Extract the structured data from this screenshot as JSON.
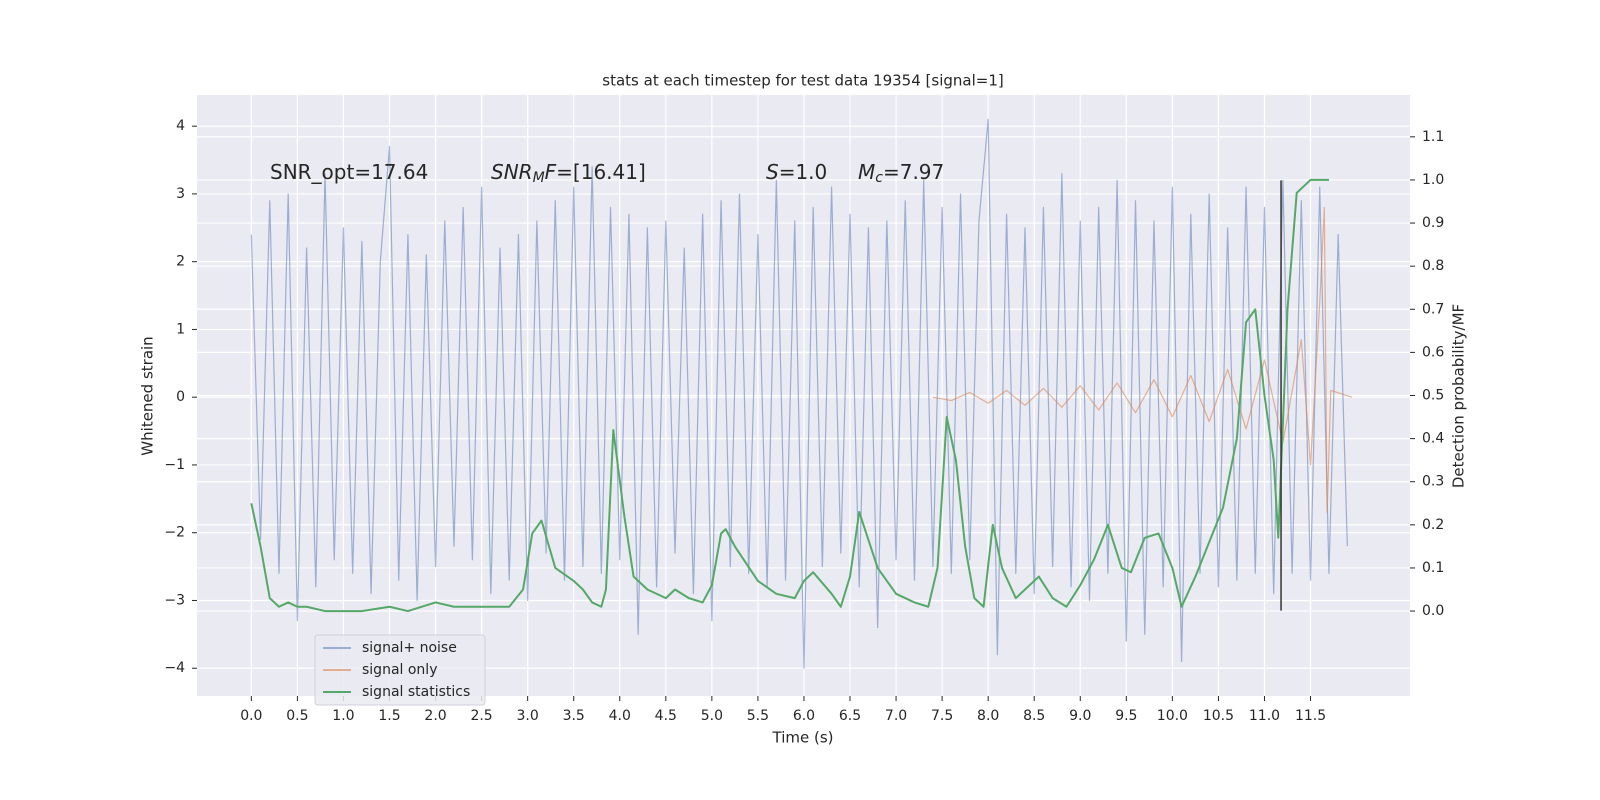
{
  "chart_data": {
    "type": "line",
    "title": "stats at each timestep for test data 19354 [signal=1]",
    "xlabel": "Time (s)",
    "ylabel": "Whitened strain",
    "y2label": "Detection probability/MF",
    "xlim": [
      -0.59,
      12.58
    ],
    "ylim": [
      -4.41,
      4.46
    ],
    "y2lim": [
      -0.197,
      1.197
    ],
    "xticks": [
      {
        "value": 0,
        "label": "0.0"
      },
      0.5,
      {
        "value": 1,
        "label": "1.0"
      },
      1.5,
      {
        "value": 2,
        "label": "2.0"
      },
      2.5,
      {
        "value": 3,
        "label": "3.0"
      },
      3.5,
      {
        "value": 4,
        "label": "4.0"
      },
      4.5,
      {
        "value": 5,
        "label": "5.0"
      },
      5.5,
      {
        "value": 6,
        "label": "6.0"
      },
      6.5,
      {
        "value": 7,
        "label": "7.0"
      },
      7.5,
      {
        "value": 8,
        "label": "8.0"
      },
      8.5,
      {
        "value": 9,
        "label": "9.0"
      },
      9.5,
      {
        "value": 10,
        "label": "10.0"
      },
      10.5,
      {
        "value": 11,
        "label": "11.0"
      },
      11.5
    ],
    "yticks": [
      {
        "value": -4,
        "label": "−4"
      },
      {
        "value": -3,
        "label": "−3"
      },
      {
        "value": -2,
        "label": "−2"
      },
      {
        "value": -1,
        "label": "−1"
      },
      0,
      1,
      2,
      3,
      4
    ],
    "y2ticks": [
      {
        "value": 0,
        "label": "0.0"
      },
      0.1,
      0.2,
      0.3,
      0.4,
      0.5,
      0.6,
      0.7,
      0.8,
      0.9,
      {
        "value": 1,
        "label": "1.0"
      },
      1.1
    ],
    "grid": true,
    "legend": "lower left",
    "annotations": [
      [
        {
          "text": "SNR_opt=17.64",
          "style": "normal"
        }
      ],
      [
        {
          "text": "SNR",
          "style": "italic"
        },
        {
          "text": "M",
          "style": "sub"
        },
        {
          "text": "F",
          "style": "italic"
        },
        {
          "text": "=[16.41]",
          "style": "normal"
        }
      ],
      [
        {
          "text": "S",
          "style": "italic"
        },
        {
          "text": "=1.0",
          "style": "normal"
        }
      ],
      [
        {
          "text": "M",
          "style": "italic"
        },
        {
          "text": "c",
          "style": "sub"
        },
        {
          "text": "=7.97",
          "style": "normal"
        }
      ]
    ],
    "vline": {
      "x": 11.18,
      "ymin": -3.15,
      "ymax": 3.2,
      "color": "#333333"
    },
    "series": [
      {
        "name": "signal+ noise",
        "color": "#4c72b0",
        "opacity": 0.5,
        "x": [
          0,
          0.1,
          0.2,
          0.3,
          0.4,
          0.5,
          0.6,
          0.7,
          0.8,
          0.9,
          1,
          1.1,
          1.2,
          1.3,
          1.4,
          1.5,
          1.6,
          1.7,
          1.8,
          1.9,
          2,
          2.1,
          2.2,
          2.3,
          2.4,
          2.5,
          2.6,
          2.7,
          2.8,
          2.9,
          3,
          3.1,
          3.2,
          3.3,
          3.4,
          3.5,
          3.6,
          3.7,
          3.8,
          3.9,
          4,
          4.1,
          4.2,
          4.3,
          4.4,
          4.5,
          4.6,
          4.7,
          4.8,
          4.9,
          5,
          5.1,
          5.2,
          5.3,
          5.4,
          5.5,
          5.6,
          5.7,
          5.8,
          5.9,
          6,
          6.1,
          6.2,
          6.3,
          6.4,
          6.5,
          6.6,
          6.7,
          6.8,
          6.9,
          7,
          7.1,
          7.2,
          7.3,
          7.4,
          7.5,
          7.6,
          7.7,
          7.8,
          7.9,
          8,
          8.1,
          8.2,
          8.3,
          8.4,
          8.5,
          8.6,
          8.7,
          8.8,
          8.9,
          9,
          9.1,
          9.2,
          9.3,
          9.4,
          9.5,
          9.6,
          9.7,
          9.8,
          9.9,
          10,
          10.1,
          10.2,
          10.3,
          10.4,
          10.5,
          10.6,
          10.7,
          10.8,
          10.9,
          11,
          11.1,
          11.2,
          11.3,
          11.4,
          11.5,
          11.6,
          11.7,
          11.8,
          11.9
        ],
        "values": [
          2.4,
          -2.1,
          2.9,
          -2.6,
          3.0,
          -3.3,
          2.2,
          -2.8,
          3.3,
          -2.4,
          2.5,
          -2.6,
          2.3,
          -2.9,
          2.0,
          3.7,
          -2.7,
          2.4,
          -3.0,
          2.1,
          -2.5,
          2.6,
          -2.2,
          2.8,
          -2.4,
          3.1,
          -2.9,
          2.2,
          -2.7,
          2.4,
          -3.0,
          2.6,
          -2.3,
          2.9,
          -2.7,
          3.1,
          -2.5,
          3.4,
          -2.6,
          2.8,
          -2.4,
          2.7,
          -3.5,
          2.5,
          -2.8,
          2.6,
          -2.3,
          2.2,
          -2.9,
          2.7,
          -3.3,
          2.9,
          -2.5,
          3.0,
          -2.6,
          2.4,
          -2.8,
          3.2,
          -2.7,
          2.6,
          -4.0,
          2.8,
          -2.5,
          3.1,
          -2.3,
          2.7,
          -2.8,
          2.5,
          -3.4,
          2.6,
          -2.4,
          2.9,
          -2.7,
          3.2,
          -2.5,
          2.8,
          -2.6,
          3.0,
          -2.4,
          2.6,
          4.1,
          -3.8,
          2.7,
          -2.6,
          2.5,
          -2.9,
          2.8,
          -2.5,
          3.3,
          -2.8,
          2.6,
          -3.0,
          2.8,
          -2.6,
          3.2,
          -3.6,
          2.9,
          -3.5,
          2.6,
          -2.8,
          3.1,
          -3.9,
          2.7,
          -2.6,
          3.0,
          -2.8,
          2.5,
          -2.7,
          3.1,
          -2.6,
          2.8,
          -2.9,
          3.2,
          -2.6,
          2.9,
          -2.7,
          3.1,
          -2.6,
          2.4,
          -2.2
        ]
      },
      {
        "name": "signal only",
        "color": "#dd8452",
        "opacity": 0.6,
        "x": [
          7.4,
          7.6,
          7.8,
          8.0,
          8.2,
          8.4,
          8.6,
          8.8,
          9.0,
          9.2,
          9.4,
          9.6,
          9.8,
          10.0,
          10.2,
          10.4,
          10.6,
          10.8,
          11.0,
          11.2,
          11.4,
          11.5,
          11.6,
          11.65,
          11.68,
          11.72,
          11.95
        ],
        "values": [
          0.0,
          -0.05,
          0.07,
          -0.09,
          0.1,
          -0.12,
          0.13,
          -0.15,
          0.17,
          -0.19,
          0.21,
          -0.23,
          0.26,
          -0.29,
          0.32,
          -0.36,
          0.41,
          -0.47,
          0.55,
          -0.67,
          0.85,
          -1.0,
          1.4,
          2.8,
          -1.7,
          0.1,
          0.0
        ]
      },
      {
        "name": "signal statistics",
        "color": "#55a868",
        "axis": "y2",
        "x": [
          0,
          0.1,
          0.2,
          0.3,
          0.4,
          0.5,
          0.6,
          0.8,
          1.0,
          1.2,
          1.5,
          1.7,
          2.0,
          2.2,
          2.5,
          2.8,
          2.95,
          3.05,
          3.15,
          3.3,
          3.5,
          3.6,
          3.7,
          3.8,
          3.85,
          3.93,
          4.05,
          4.15,
          4.3,
          4.5,
          4.6,
          4.75,
          4.9,
          5.0,
          5.1,
          5.15,
          5.25,
          5.5,
          5.7,
          5.9,
          6.0,
          6.1,
          6.3,
          6.4,
          6.5,
          6.6,
          6.8,
          7.0,
          7.2,
          7.35,
          7.45,
          7.55,
          7.65,
          7.75,
          7.85,
          7.95,
          8.05,
          8.15,
          8.3,
          8.4,
          8.55,
          8.7,
          8.85,
          9.0,
          9.15,
          9.3,
          9.45,
          9.55,
          9.7,
          9.85,
          10.0,
          10.1,
          10.25,
          10.4,
          10.55,
          10.7,
          10.8,
          10.9,
          11.0,
          11.1,
          11.15,
          11.25,
          11.35,
          11.5,
          11.7
        ],
        "values": [
          0.25,
          0.15,
          0.03,
          0.01,
          0.02,
          0.01,
          0.01,
          0.0,
          0.0,
          0.0,
          0.01,
          0.0,
          0.02,
          0.01,
          0.01,
          0.01,
          0.05,
          0.18,
          0.21,
          0.1,
          0.07,
          0.05,
          0.02,
          0.01,
          0.05,
          0.42,
          0.22,
          0.08,
          0.05,
          0.03,
          0.05,
          0.03,
          0.02,
          0.06,
          0.18,
          0.19,
          0.15,
          0.07,
          0.04,
          0.03,
          0.07,
          0.09,
          0.04,
          0.01,
          0.08,
          0.23,
          0.1,
          0.04,
          0.02,
          0.01,
          0.1,
          0.45,
          0.35,
          0.15,
          0.03,
          0.01,
          0.2,
          0.1,
          0.03,
          0.05,
          0.08,
          0.03,
          0.01,
          0.06,
          0.12,
          0.2,
          0.1,
          0.09,
          0.17,
          0.18,
          0.1,
          0.01,
          0.08,
          0.16,
          0.24,
          0.4,
          0.67,
          0.7,
          0.5,
          0.35,
          0.17,
          0.7,
          0.97,
          1.0,
          1.0
        ]
      }
    ]
  }
}
